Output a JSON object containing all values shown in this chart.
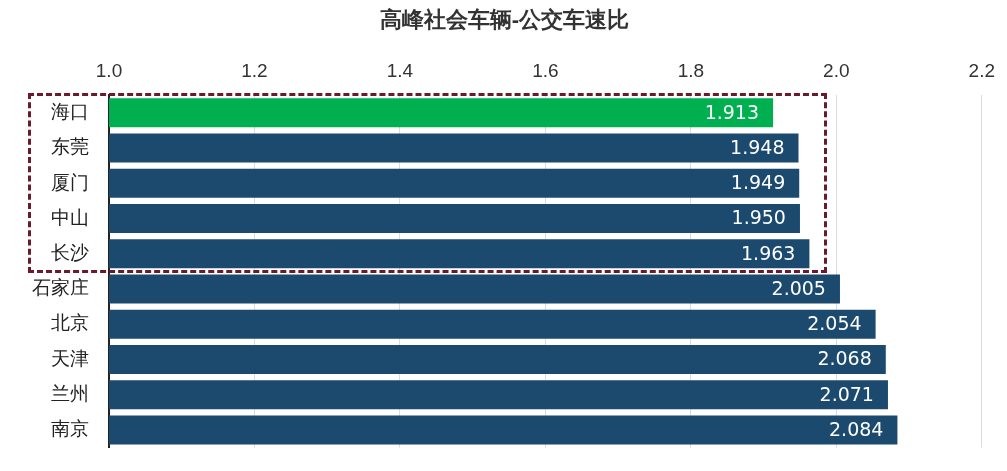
{
  "chart_data": {
    "type": "bar",
    "orientation": "horizontal",
    "title": "高峰社会车辆-公交车速比",
    "categories": [
      "海口",
      "东莞",
      "厦门",
      "中山",
      "长沙",
      "石家庄",
      "北京",
      "天津",
      "兰州",
      "南京"
    ],
    "values": [
      1.913,
      1.948,
      1.949,
      1.95,
      1.963,
      2.005,
      2.054,
      2.068,
      2.071,
      2.084
    ],
    "colors": [
      "#00b050",
      "#1b4a6e",
      "#1b4a6e",
      "#1b4a6e",
      "#1b4a6e",
      "#1b4a6e",
      "#1b4a6e",
      "#1b4a6e",
      "#1b4a6e",
      "#1b4a6e"
    ],
    "xlim": [
      1.0,
      2.2
    ],
    "xticks": [
      {
        "value": 1.0,
        "label": "1.0"
      },
      {
        "value": 1.2,
        "label": "1.2"
      },
      {
        "value": 1.4,
        "label": "1.4"
      },
      {
        "value": 1.6,
        "label": "1.6"
      },
      {
        "value": 1.8,
        "label": "1.8"
      },
      {
        "value": 2.0,
        "label": "2.0"
      },
      {
        "value": 2.2,
        "label": "2.2"
      }
    ],
    "value_labels": [
      "1.913",
      "1.948",
      "1.949",
      "1.950",
      "1.963",
      "2.005",
      "2.054",
      "2.068",
      "2.071",
      "2.084"
    ],
    "grid": "x",
    "legend": false
  }
}
